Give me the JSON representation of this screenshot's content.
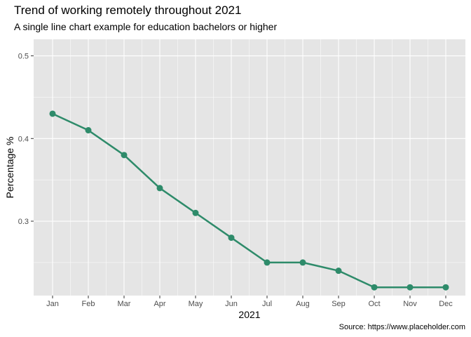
{
  "chart_data": {
    "type": "line",
    "title": "Trend of working remotely throughout 2021",
    "subtitle": "A single line chart example for education bachelors or higher",
    "caption": "Source: https://www.placeholder.com",
    "xlabel": "2021",
    "ylabel": "Percentage %",
    "categories": [
      "Jan",
      "Feb",
      "Mar",
      "Apr",
      "May",
      "Jun",
      "Jul",
      "Aug",
      "Sep",
      "Oct",
      "Nov",
      "Dec"
    ],
    "series": [
      {
        "values": [
          0.43,
          0.41,
          0.38,
          0.34,
          0.31,
          0.28,
          0.25,
          0.25,
          0.24,
          0.22,
          0.22,
          0.22
        ]
      }
    ],
    "ylim": [
      0.21,
      0.52
    ],
    "yticks": [
      "0.3",
      "0.4",
      "0.5"
    ],
    "grid": true,
    "colors": {
      "line": "#2e8b6a",
      "panel": "#e5e5e5",
      "grid": "#ffffff"
    }
  }
}
